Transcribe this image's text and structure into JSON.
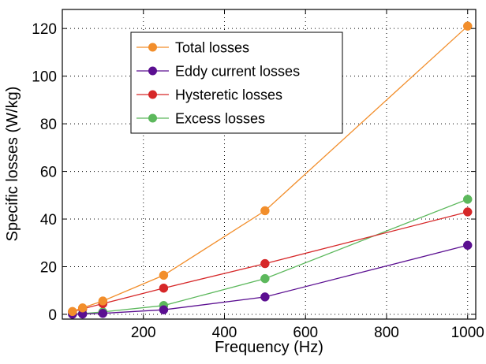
{
  "chart_data": {
    "type": "line",
    "title": "",
    "xlabel": "Frequency (Hz)",
    "ylabel": "Specific losses (W/kg)",
    "xlim": [
      0,
      1020
    ],
    "ylim": [
      -2,
      128
    ],
    "xticks": [
      200,
      400,
      600,
      800,
      1000
    ],
    "yticks": [
      0,
      20,
      40,
      60,
      80,
      100,
      120
    ],
    "grid": true,
    "legend_position": "top-center",
    "x": [
      25,
      50,
      100,
      250,
      500,
      1000
    ],
    "series": [
      {
        "name": "Total losses",
        "color": "#f28e2b",
        "values": [
          1.2,
          2.7,
          5.6,
          16.4,
          43.5,
          121.0
        ]
      },
      {
        "name": "Eddy current losses",
        "color": "#5b0f91",
        "values": [
          0.05,
          0.12,
          0.4,
          1.9,
          7.3,
          29.0
        ]
      },
      {
        "name": "Hysteretic losses",
        "color": "#d62728",
        "values": [
          1.1,
          2.3,
          4.5,
          11.0,
          21.3,
          43.0
        ]
      },
      {
        "name": "Excess losses",
        "color": "#5cb85c",
        "values": [
          0.1,
          0.3,
          1.0,
          3.7,
          15.0,
          48.3
        ]
      }
    ]
  }
}
